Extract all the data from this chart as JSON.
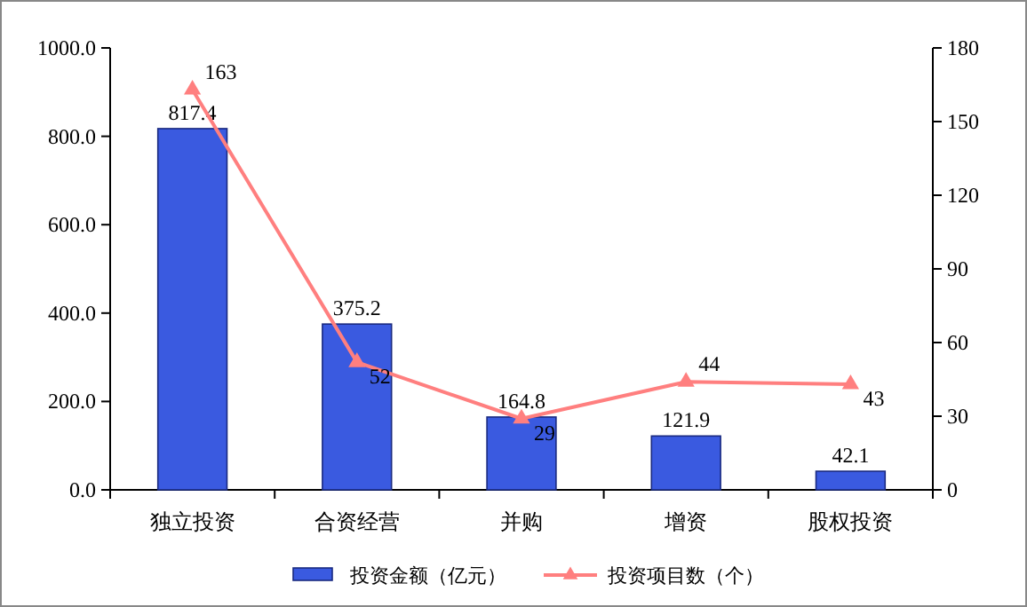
{
  "chart_data": {
    "type": "bar",
    "categories": [
      "独立投资",
      "合资经营",
      "并购",
      "增资",
      "股权投资"
    ],
    "series": [
      {
        "name": "投资金额（亿元）",
        "color": "#3a5ae0",
        "values": [
          817.4,
          375.2,
          164.8,
          121.9,
          42.1
        ]
      },
      {
        "name": "投资项目数（个）",
        "type": "line",
        "axis": "y2",
        "color": "#ff7f7f",
        "values": [
          163,
          52,
          29,
          44,
          43
        ],
        "marker": "triangle"
      }
    ],
    "ylim": [
      0,
      1000
    ],
    "yticks": [
      {
        "value": 0,
        "label": "0.0"
      },
      {
        "value": 200,
        "label": "200.0"
      },
      {
        "value": 400,
        "label": "400.0"
      },
      {
        "value": 600,
        "label": "600.0"
      },
      {
        "value": 800,
        "label": "800.0"
      },
      {
        "value": 1000,
        "label": "1000.0"
      }
    ],
    "y2lim": [
      0,
      180
    ],
    "y2ticks": [
      0,
      30,
      60,
      90,
      120,
      150,
      180
    ],
    "data_labels": true,
    "legend": "bottom",
    "grid": false
  }
}
